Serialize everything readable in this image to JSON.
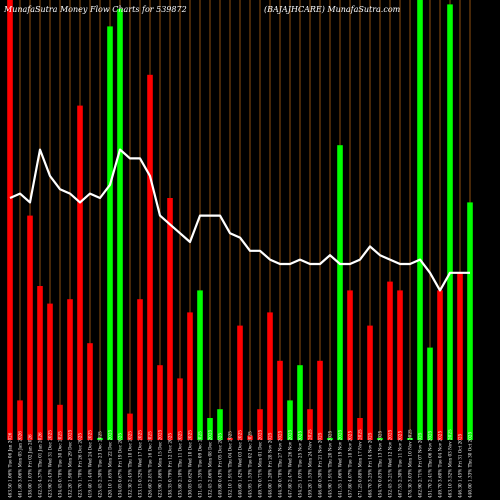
{
  "header": {
    "left": "MunafaSutra  Money Flow  Charts for 539872",
    "right": "(BAJAJHCARE) MunafaSutra.com"
  },
  "colors": {
    "background": "#000000",
    "up": "#00ff00",
    "down": "#ff0000",
    "line": "#ffffff",
    "grid": "#b46414"
  },
  "chart_data": {
    "type": "bar",
    "title": "MunafaSutra  Money Flow  Charts for 539872",
    "subtitle": "(BAJAJHCARE) MunafaSutra.com",
    "categories": [
      "463.50 1.06% Tue 06 Jan 2026",
      "461.80 3.06% Mon 05 Jan 2026",
      "438.00 1.03% Fri 02 Jan 2026",
      "442.55 4.37% Thu 01 Jan 2026",
      "423.90 2.43% Wed 31 Dec 2025",
      "434.45 0.78% Tue 30 Dec 2025",
      "432.20 1.98% Mon 29 Dec 2025",
      "423.70 1.70% Fri 26 Dec 2025",
      "419.40 1.44% Wed 24 Dec 2025",
      "425.45 2.30% Tue 23 Dec 2025",
      "420.10 1.65% Mon 22 Dec 2025",
      "434.05 0.67% Fri 19 Dec 2025",
      "432.30 2.45% Thu 18 Dec 2025",
      "433.15 0.32% Wed 17 Dec 2025",
      "426.60 2.81% Tue 16 Dec 2025",
      "423.90 1.86% Mon 15 Dec 2025",
      "438.35 0.79% Fri 12 Dec 2025",
      "435.80 2.10% Thu 11 Dec 2025",
      "430.05 0.62% Wed 10 Dec 2025",
      "431.45 1.35% Tue 09 Dec 2025",
      "432.45 2.06% Mon 08 Dec 2025",
      "449.80 0.43% Fri 05 Dec 2025",
      "452.10 1.91% Thu 04 Dec 2025",
      "440.60 1.42% Wed 03 Dec 2025",
      "445.95 1.53% Tue 02 Dec 2025",
      "449.70 0.71% Mon 01 Dec 2025",
      "448.00 1.20% Fri 28 Nov 2025",
      "444.30 0.78% Thu 27 Nov 2025",
      "447.80 2.47% Wed 26 Nov 2025",
      "454.25 1.03% Tue 25 Nov 2025",
      "459.20 1.53% Mon 24 Nov 2025",
      "446.40 0.30% Fri 21 Nov 2025",
      "445.90 1.91% Thu 20 Nov 2025",
      "441.55 1.06% Wed 19 Nov 2025",
      "457.80 4.07% Tue 18 Nov 2025",
      "471.25 0.88% Mon 17 Nov 2025",
      "468.70 3.25% Fri 14 Nov 2025",
      "454.70 0.83% Thu 13 Nov 2025",
      "452.45 3.21% Wed 12 Nov 2025",
      "467.55 2.30% Tue 11 Nov 2025",
      "478.30 3.03% Mon 10 Nov 2025",
      "462.90 2.71% Fri 07 Nov 2025",
      "451.70 2.41% Thu 06 Nov 2025",
      "449.70 3.60% Tue 04 Nov 2025",
      "463.10 3.52% Mon 03 Nov 2025",
      "446.30 1.45% Fri 31 Oct 2025",
      "440.00 1.33% Thu 30 Oct 2025"
    ],
    "series": [
      {
        "values": [
          100,
          9,
          51,
          35,
          31,
          8,
          32,
          76,
          22,
          0,
          94,
          98,
          6,
          32,
          83,
          17,
          55,
          14,
          29,
          34,
          5,
          7,
          0,
          26,
          1,
          7,
          29,
          18,
          9,
          17,
          7,
          18,
          0,
          67,
          34,
          5,
          26,
          0,
          36,
          34,
          0,
          100,
          21,
          34,
          99,
          38,
          54
        ],
        "directions": [
          "down",
          "down",
          "down",
          "down",
          "down",
          "down",
          "down",
          "down",
          "down",
          "up",
          "up",
          "up",
          "down",
          "down",
          "down",
          "down",
          "down",
          "down",
          "down",
          "up",
          "up",
          "up",
          "down",
          "down",
          "down",
          "down",
          "down",
          "down",
          "up",
          "up",
          "down",
          "down",
          "up",
          "up",
          "down",
          "down",
          "down",
          "up",
          "down",
          "down",
          "up",
          "up",
          "up",
          "down",
          "up",
          "down",
          "up"
        ]
      }
    ],
    "price_line": [
      55,
      56,
      54,
      66,
      60,
      57,
      56,
      54,
      56,
      55,
      58,
      66,
      64,
      64,
      60,
      51,
      49,
      47,
      45,
      51,
      51,
      51,
      47,
      46,
      43,
      43,
      41,
      40,
      40,
      41,
      40,
      40,
      42,
      40,
      40,
      41,
      44,
      42,
      41,
      40,
      40,
      41,
      38,
      34,
      38,
      38,
      38
    ],
    "volume_max": 100,
    "line_max": 100,
    "grid_lines": "vertical",
    "legend": "none"
  }
}
